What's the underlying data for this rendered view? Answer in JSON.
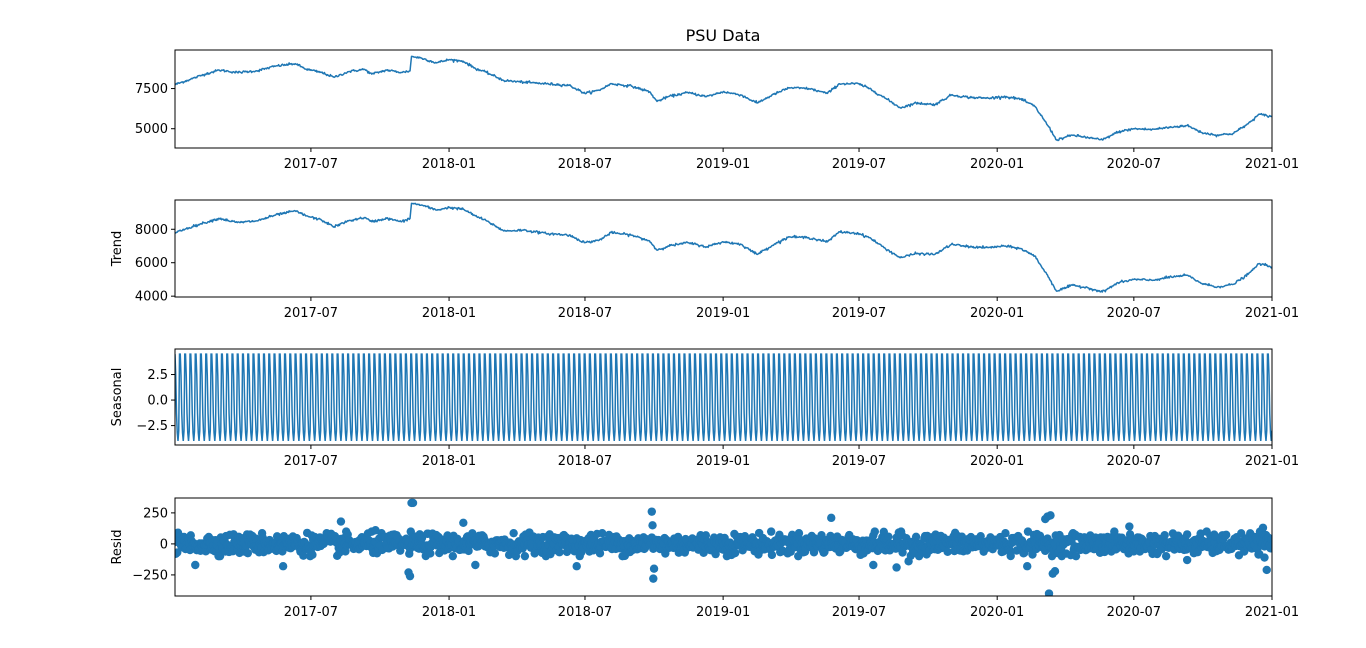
{
  "chart_data": [
    {
      "type": "line",
      "title": "PSU Data",
      "ylabel": "",
      "xlim": [
        "2017-01-01",
        "2021-01-01"
      ],
      "ylim": [
        3800,
        9900
      ],
      "yticks": [
        5000,
        7500
      ],
      "ytick_labels": [
        "5000",
        "7500"
      ],
      "xtick_labels": [
        "2017-07",
        "2018-01",
        "2018-07",
        "2019-01",
        "2019-07",
        "2020-01",
        "2020-07",
        "2021-01"
      ],
      "series": [
        {
          "color": "#1f77b4",
          "points": [
            [
              "2017-01-01",
              7750
            ],
            [
              "2017-01-20",
              8050
            ],
            [
              "2017-02-10",
              8400
            ],
            [
              "2017-03-01",
              8650
            ],
            [
              "2017-03-25",
              8500
            ],
            [
              "2017-04-20",
              8600
            ],
            [
              "2017-05-15",
              8900
            ],
            [
              "2017-06-10",
              9050
            ],
            [
              "2017-06-25",
              8700
            ],
            [
              "2017-07-15",
              8500
            ],
            [
              "2017-08-01",
              8200
            ],
            [
              "2017-08-20",
              8550
            ],
            [
              "2017-09-10",
              8700
            ],
            [
              "2017-09-20",
              8400
            ],
            [
              "2017-10-10",
              8650
            ],
            [
              "2017-10-30",
              8500
            ],
            [
              "2017-11-10",
              8600
            ],
            [
              "2017-11-12",
              9500
            ],
            [
              "2017-11-25",
              9400
            ],
            [
              "2017-12-15",
              9100
            ],
            [
              "2018-01-01",
              9300
            ],
            [
              "2018-01-20",
              9200
            ],
            [
              "2018-02-05",
              8750
            ],
            [
              "2018-02-20",
              8500
            ],
            [
              "2018-03-15",
              8000
            ],
            [
              "2018-04-10",
              7900
            ],
            [
              "2018-05-10",
              7800
            ],
            [
              "2018-06-10",
              7700
            ],
            [
              "2018-07-01",
              7200
            ],
            [
              "2018-07-20",
              7400
            ],
            [
              "2018-08-05",
              7800
            ],
            [
              "2018-09-01",
              7650
            ],
            [
              "2018-09-25",
              7300
            ],
            [
              "2018-10-05",
              6700
            ],
            [
              "2018-10-20",
              7000
            ],
            [
              "2018-11-15",
              7250
            ],
            [
              "2018-12-10",
              7000
            ],
            [
              "2019-01-01",
              7300
            ],
            [
              "2019-01-25",
              7100
            ],
            [
              "2019-02-15",
              6600
            ],
            [
              "2019-03-10",
              7150
            ],
            [
              "2019-03-30",
              7550
            ],
            [
              "2019-04-25",
              7500
            ],
            [
              "2019-05-20",
              7200
            ],
            [
              "2019-06-05",
              7800
            ],
            [
              "2019-06-30",
              7800
            ],
            [
              "2019-07-15",
              7500
            ],
            [
              "2019-08-05",
              6900
            ],
            [
              "2019-08-25",
              6300
            ],
            [
              "2019-09-15",
              6600
            ],
            [
              "2019-10-10",
              6500
            ],
            [
              "2019-11-01",
              7100
            ],
            [
              "2019-11-25",
              6950
            ],
            [
              "2019-12-20",
              6900
            ],
            [
              "2020-01-10",
              7000
            ],
            [
              "2020-02-01",
              6850
            ],
            [
              "2020-02-20",
              6400
            ],
            [
              "2020-03-10",
              5100
            ],
            [
              "2020-03-20",
              4300
            ],
            [
              "2020-04-10",
              4600
            ],
            [
              "2020-05-01",
              4450
            ],
            [
              "2020-05-20",
              4300
            ],
            [
              "2020-06-10",
              4800
            ],
            [
              "2020-07-01",
              5000
            ],
            [
              "2020-07-25",
              4950
            ],
            [
              "2020-08-20",
              5100
            ],
            [
              "2020-09-10",
              5200
            ],
            [
              "2020-09-30",
              4750
            ],
            [
              "2020-10-20",
              4600
            ],
            [
              "2020-11-10",
              4700
            ],
            [
              "2020-11-30",
              5300
            ],
            [
              "2020-12-15",
              5900
            ],
            [
              "2021-01-01",
              5750
            ]
          ]
        }
      ]
    },
    {
      "type": "line",
      "title": "",
      "ylabel": "Trend",
      "xlim": [
        "2017-01-01",
        "2021-01-01"
      ],
      "ylim": [
        3950,
        9750
      ],
      "yticks": [
        4000,
        6000,
        8000
      ],
      "ytick_labels": [
        "4000",
        "6000",
        "8000"
      ],
      "xtick_labels": [
        "2017-07",
        "2018-01",
        "2018-07",
        "2019-01",
        "2019-07",
        "2020-01",
        "2020-07",
        "2021-01"
      ],
      "series": [
        {
          "name": "Trend",
          "color": "#1f77b4",
          "points": [
            [
              "2017-01-01",
              7800
            ],
            [
              "2017-01-20",
              8100
            ],
            [
              "2017-02-10",
              8400
            ],
            [
              "2017-03-01",
              8650
            ],
            [
              "2017-03-25",
              8400
            ],
            [
              "2017-04-20",
              8500
            ],
            [
              "2017-05-15",
              8850
            ],
            [
              "2017-06-10",
              9100
            ],
            [
              "2017-06-25",
              8800
            ],
            [
              "2017-07-15",
              8550
            ],
            [
              "2017-08-01",
              8150
            ],
            [
              "2017-08-20",
              8500
            ],
            [
              "2017-09-10",
              8700
            ],
            [
              "2017-09-20",
              8450
            ],
            [
              "2017-10-10",
              8650
            ],
            [
              "2017-10-30",
              8450
            ],
            [
              "2017-11-10",
              8650
            ],
            [
              "2017-11-12",
              9550
            ],
            [
              "2017-11-25",
              9450
            ],
            [
              "2017-12-15",
              9150
            ],
            [
              "2018-01-01",
              9300
            ],
            [
              "2018-01-20",
              9200
            ],
            [
              "2018-02-05",
              8800
            ],
            [
              "2018-02-20",
              8500
            ],
            [
              "2018-03-15",
              7900
            ],
            [
              "2018-04-10",
              7950
            ],
            [
              "2018-05-10",
              7750
            ],
            [
              "2018-06-10",
              7650
            ],
            [
              "2018-07-01",
              7200
            ],
            [
              "2018-07-20",
              7350
            ],
            [
              "2018-08-05",
              7800
            ],
            [
              "2018-09-01",
              7650
            ],
            [
              "2018-09-25",
              7300
            ],
            [
              "2018-10-05",
              6750
            ],
            [
              "2018-10-20",
              7000
            ],
            [
              "2018-11-15",
              7200
            ],
            [
              "2018-12-10",
              6950
            ],
            [
              "2019-01-01",
              7250
            ],
            [
              "2019-01-25",
              7100
            ],
            [
              "2019-02-15",
              6500
            ],
            [
              "2019-03-10",
              7100
            ],
            [
              "2019-03-30",
              7550
            ],
            [
              "2019-04-25",
              7500
            ],
            [
              "2019-05-20",
              7250
            ],
            [
              "2019-06-05",
              7850
            ],
            [
              "2019-06-30",
              7750
            ],
            [
              "2019-07-15",
              7500
            ],
            [
              "2019-08-05",
              6850
            ],
            [
              "2019-08-25",
              6300
            ],
            [
              "2019-09-15",
              6550
            ],
            [
              "2019-10-10",
              6500
            ],
            [
              "2019-11-01",
              7100
            ],
            [
              "2019-11-25",
              6950
            ],
            [
              "2019-12-20",
              6900
            ],
            [
              "2020-01-10",
              7000
            ],
            [
              "2020-02-01",
              6850
            ],
            [
              "2020-02-20",
              6400
            ],
            [
              "2020-03-10",
              5100
            ],
            [
              "2020-03-20",
              4300
            ],
            [
              "2020-04-10",
              4650
            ],
            [
              "2020-05-01",
              4500
            ],
            [
              "2020-05-20",
              4250
            ],
            [
              "2020-06-10",
              4800
            ],
            [
              "2020-07-01",
              5000
            ],
            [
              "2020-07-25",
              4950
            ],
            [
              "2020-08-20",
              5150
            ],
            [
              "2020-09-10",
              5250
            ],
            [
              "2020-09-30",
              4750
            ],
            [
              "2020-10-20",
              4550
            ],
            [
              "2020-11-10",
              4700
            ],
            [
              "2020-11-30",
              5300
            ],
            [
              "2020-12-15",
              5950
            ],
            [
              "2021-01-01",
              5750
            ]
          ]
        }
      ]
    },
    {
      "type": "line",
      "title": "",
      "ylabel": "Seasonal",
      "xlim": [
        "2017-01-01",
        "2021-01-01"
      ],
      "ylim": [
        -4.4,
        5.0
      ],
      "yticks": [
        -2.5,
        0.0,
        2.5
      ],
      "ytick_labels": [
        "−2.5",
        "0.0",
        "2.5"
      ],
      "xtick_labels": [
        "2017-07",
        "2018-01",
        "2018-07",
        "2019-01",
        "2019-07",
        "2020-01",
        "2020-07",
        "2021-01"
      ],
      "series": [
        {
          "name": "Seasonal",
          "color": "#1f77b4",
          "period_days": 7,
          "pattern": [
            4.5,
            2.4,
            -1.3,
            -3.2,
            -4.0,
            -3.0,
            4.5
          ]
        }
      ]
    },
    {
      "type": "scatter",
      "title": "",
      "ylabel": "Resid",
      "xlim": [
        "2017-01-01",
        "2021-01-01"
      ],
      "ylim": [
        -420,
        370
      ],
      "yticks": [
        -250,
        0,
        250
      ],
      "ytick_labels": [
        "−250",
        "0",
        "250"
      ],
      "xtick_labels": [
        "2017-07",
        "2018-01",
        "2018-07",
        "2019-01",
        "2019-07",
        "2020-01",
        "2020-07",
        "2021-01"
      ],
      "series": [
        {
          "name": "Resid",
          "color": "#1f77b4",
          "typical_range": [
            -90,
            90
          ],
          "outliers": [
            [
              "2017-01-28",
              -170
            ],
            [
              "2017-05-25",
              -180
            ],
            [
              "2017-08-10",
              180
            ],
            [
              "2017-09-25",
              110
            ],
            [
              "2017-11-08",
              -230
            ],
            [
              "2017-11-10",
              -260
            ],
            [
              "2017-11-12",
              330
            ],
            [
              "2017-11-14",
              330
            ],
            [
              "2018-01-20",
              170
            ],
            [
              "2018-02-05",
              -170
            ],
            [
              "2018-06-20",
              -180
            ],
            [
              "2018-09-28",
              260
            ],
            [
              "2018-09-29",
              150
            ],
            [
              "2018-09-30",
              -280
            ],
            [
              "2018-10-01",
              -200
            ],
            [
              "2019-05-25",
              210
            ],
            [
              "2019-07-20",
              -170
            ],
            [
              "2019-08-20",
              -190
            ],
            [
              "2019-09-05",
              -140
            ],
            [
              "2020-02-10",
              -180
            ],
            [
              "2020-03-05",
              200
            ],
            [
              "2020-03-08",
              220
            ],
            [
              "2020-03-10",
              -400
            ],
            [
              "2020-03-12",
              230
            ],
            [
              "2020-03-15",
              -240
            ],
            [
              "2020-03-18",
              -220
            ],
            [
              "2020-06-25",
              140
            ],
            [
              "2020-09-10",
              -130
            ],
            [
              "2020-12-20",
              130
            ],
            [
              "2020-12-22",
              -110
            ],
            [
              "2020-12-25",
              -210
            ]
          ]
        }
      ]
    }
  ]
}
